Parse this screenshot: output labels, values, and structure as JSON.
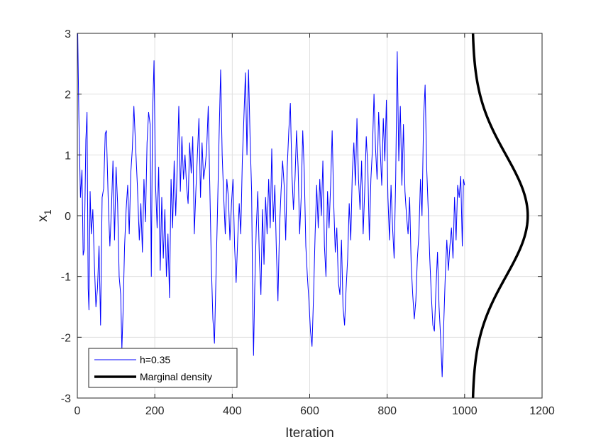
{
  "chart_data": {
    "type": "line",
    "title": "",
    "xlabel": "Iteration",
    "ylabel_main": "x",
    "ylabel_sub": "1",
    "xlim": [
      0,
      1200
    ],
    "ylim": [
      -3,
      3
    ],
    "xticks": [
      0,
      200,
      400,
      600,
      800,
      1000,
      1200
    ],
    "xtick_labels": [
      "0",
      "200",
      "400",
      "600",
      "800",
      "1000",
      "1200"
    ],
    "yticks": [
      -3,
      -2,
      -1,
      0,
      1,
      2,
      3
    ],
    "ytick_labels": [
      "-3",
      "-2",
      "-1",
      "0",
      "1",
      "2",
      "3"
    ],
    "grid": true,
    "legend_position": "bottom-left",
    "series": [
      {
        "name": "h=0.35",
        "color": "#0000ff",
        "kind": "trace",
        "x_start": 1,
        "x_end": 1000,
        "points": [
          [
            1,
            3.0
          ],
          [
            4,
            1.6
          ],
          [
            8,
            0.3
          ],
          [
            12,
            0.75
          ],
          [
            15,
            -0.65
          ],
          [
            18,
            -0.55
          ],
          [
            22,
            1.25
          ],
          [
            25,
            1.7
          ],
          [
            28,
            -1.2
          ],
          [
            30,
            -1.55
          ],
          [
            33,
            0.4
          ],
          [
            36,
            -0.3
          ],
          [
            40,
            0.1
          ],
          [
            44,
            -0.8
          ],
          [
            48,
            -1.5
          ],
          [
            52,
            -1.2
          ],
          [
            56,
            -0.5
          ],
          [
            60,
            -1.8
          ],
          [
            64,
            0.3
          ],
          [
            68,
            0.45
          ],
          [
            72,
            1.35
          ],
          [
            75,
            1.4
          ],
          [
            80,
            0.2
          ],
          [
            84,
            -0.5
          ],
          [
            88,
            0.1
          ],
          [
            92,
            0.9
          ],
          [
            96,
            -0.4
          ],
          [
            100,
            0.8
          ],
          [
            104,
            0.2
          ],
          [
            108,
            -1.0
          ],
          [
            112,
            -1.3
          ],
          [
            115,
            -2.2
          ],
          [
            118,
            -1.6
          ],
          [
            122,
            -0.5
          ],
          [
            126,
            0.1
          ],
          [
            130,
            0.5
          ],
          [
            134,
            -0.3
          ],
          [
            138,
            0.7
          ],
          [
            142,
            1.1
          ],
          [
            146,
            1.8
          ],
          [
            150,
            1.2
          ],
          [
            155,
            0.5
          ],
          [
            160,
            -0.4
          ],
          [
            164,
            0.2
          ],
          [
            168,
            -0.6
          ],
          [
            172,
            0.6
          ],
          [
            176,
            -0.1
          ],
          [
            180,
            1.2
          ],
          [
            184,
            1.7
          ],
          [
            188,
            1.5
          ],
          [
            191,
            -1.0
          ],
          [
            194,
            1.6
          ],
          [
            198,
            2.55
          ],
          [
            202,
            0.5
          ],
          [
            206,
            -0.2
          ],
          [
            210,
            0.8
          ],
          [
            214,
            -0.9
          ],
          [
            218,
            0.3
          ],
          [
            222,
            -0.7
          ],
          [
            226,
            0.1
          ],
          [
            230,
            -1.0
          ],
          [
            234,
            -0.3
          ],
          [
            238,
            -1.35
          ],
          [
            242,
            0.6
          ],
          [
            246,
            -0.2
          ],
          [
            250,
            0.9
          ],
          [
            254,
            0.0
          ],
          [
            258,
            0.8
          ],
          [
            262,
            1.8
          ],
          [
            266,
            0.4
          ],
          [
            270,
            1.3
          ],
          [
            274,
            0.6
          ],
          [
            278,
            1.0
          ],
          [
            282,
            0.5
          ],
          [
            286,
            0.2
          ],
          [
            290,
            1.2
          ],
          [
            294,
            0.7
          ],
          [
            298,
            1.3
          ],
          [
            302,
            -0.3
          ],
          [
            306,
            0.4
          ],
          [
            310,
            1.0
          ],
          [
            314,
            1.6
          ],
          [
            318,
            0.3
          ],
          [
            322,
            1.2
          ],
          [
            326,
            0.6
          ],
          [
            330,
            0.8
          ],
          [
            334,
            1.1
          ],
          [
            338,
            1.8
          ],
          [
            342,
            0.5
          ],
          [
            346,
            -0.8
          ],
          [
            350,
            -1.7
          ],
          [
            354,
            -2.1
          ],
          [
            358,
            -1.0
          ],
          [
            362,
            0.1
          ],
          [
            366,
            1.3
          ],
          [
            370,
            2.4
          ],
          [
            374,
            1.0
          ],
          [
            378,
            0.3
          ],
          [
            382,
            -0.3
          ],
          [
            386,
            0.6
          ],
          [
            390,
            0.3
          ],
          [
            394,
            -0.4
          ],
          [
            398,
            0.2
          ],
          [
            402,
            0.6
          ],
          [
            406,
            -0.5
          ],
          [
            410,
            -1.1
          ],
          [
            414,
            -0.4
          ],
          [
            418,
            0.2
          ],
          [
            422,
            -0.3
          ],
          [
            426,
            0.9
          ],
          [
            430,
            1.6
          ],
          [
            434,
            2.35
          ],
          [
            438,
            1.0
          ],
          [
            442,
            2.4
          ],
          [
            446,
            1.3
          ],
          [
            450,
            0.4
          ],
          [
            453,
            -1.5
          ],
          [
            455,
            -2.3
          ],
          [
            458,
            -1.2
          ],
          [
            462,
            -0.2
          ],
          [
            466,
            0.4
          ],
          [
            470,
            -0.7
          ],
          [
            474,
            -1.3
          ],
          [
            478,
            0.1
          ],
          [
            482,
            -0.8
          ],
          [
            486,
            0.3
          ],
          [
            490,
            -0.3
          ],
          [
            494,
            0.6
          ],
          [
            498,
            -0.2
          ],
          [
            502,
            1.1
          ],
          [
            506,
            -0.1
          ],
          [
            510,
            0.5
          ],
          [
            514,
            -0.6
          ],
          [
            518,
            -1.4
          ],
          [
            522,
            -0.2
          ],
          [
            526,
            0.4
          ],
          [
            530,
            0.9
          ],
          [
            534,
            0.5
          ],
          [
            538,
            -0.4
          ],
          [
            542,
            0.8
          ],
          [
            546,
            1.4
          ],
          [
            550,
            1.85
          ],
          [
            554,
            0.7
          ],
          [
            558,
            0.1
          ],
          [
            562,
            0.6
          ],
          [
            566,
            1.4
          ],
          [
            570,
            0.8
          ],
          [
            574,
            -0.3
          ],
          [
            578,
            0.3
          ],
          [
            582,
            1.4
          ],
          [
            586,
            0.7
          ],
          [
            590,
            -0.5
          ],
          [
            594,
            -1.0
          ],
          [
            598,
            -1.4
          ],
          [
            602,
            -1.9
          ],
          [
            606,
            -2.15
          ],
          [
            610,
            -1.3
          ],
          [
            614,
            -0.3
          ],
          [
            618,
            0.5
          ],
          [
            622,
            -0.2
          ],
          [
            626,
            0.6
          ],
          [
            630,
            0.0
          ],
          [
            634,
            0.9
          ],
          [
            638,
            -0.5
          ],
          [
            642,
            -1.0
          ],
          [
            646,
            0.4
          ],
          [
            650,
            -0.2
          ],
          [
            654,
            0.5
          ],
          [
            658,
            1.4
          ],
          [
            662,
            0.2
          ],
          [
            666,
            -0.6
          ],
          [
            670,
            -0.2
          ],
          [
            674,
            -1.1
          ],
          [
            678,
            -1.3
          ],
          [
            682,
            -0.4
          ],
          [
            686,
            -1.5
          ],
          [
            690,
            -1.8
          ],
          [
            694,
            -1.2
          ],
          [
            698,
            -0.7
          ],
          [
            702,
            0.2
          ],
          [
            706,
            -0.4
          ],
          [
            710,
            0.7
          ],
          [
            714,
            1.2
          ],
          [
            718,
            0.5
          ],
          [
            722,
            1.6
          ],
          [
            726,
            0.6
          ],
          [
            730,
            0.1
          ],
          [
            734,
            0.9
          ],
          [
            738,
            -0.3
          ],
          [
            742,
            0.4
          ],
          [
            746,
            1.3
          ],
          [
            750,
            0.8
          ],
          [
            754,
            -0.4
          ],
          [
            758,
            0.6
          ],
          [
            762,
            1.1
          ],
          [
            766,
            2.0
          ],
          [
            770,
            1.1
          ],
          [
            774,
            0.6
          ],
          [
            778,
            1.7
          ],
          [
            782,
            1.1
          ],
          [
            786,
            0.5
          ],
          [
            790,
            1.6
          ],
          [
            794,
            0.9
          ],
          [
            798,
            1.9
          ],
          [
            802,
            0.3
          ],
          [
            806,
            -0.4
          ],
          [
            810,
            0.5
          ],
          [
            814,
            -0.2
          ],
          [
            818,
            -0.7
          ],
          [
            822,
            0.6
          ],
          [
            826,
            2.7
          ],
          [
            830,
            0.9
          ],
          [
            834,
            1.8
          ],
          [
            838,
            0.5
          ],
          [
            842,
            1.5
          ],
          [
            846,
            0.4
          ],
          [
            850,
            0.0
          ],
          [
            854,
            -0.3
          ],
          [
            858,
            0.3
          ],
          [
            862,
            -0.8
          ],
          [
            866,
            -1.3
          ],
          [
            870,
            -1.7
          ],
          [
            874,
            -1.4
          ],
          [
            878,
            -0.7
          ],
          [
            882,
            -0.3
          ],
          [
            886,
            0.6
          ],
          [
            890,
            0.0
          ],
          [
            894,
            1.6
          ],
          [
            898,
            2.15
          ],
          [
            902,
            0.8
          ],
          [
            906,
            0.1
          ],
          [
            910,
            -0.7
          ],
          [
            914,
            -1.3
          ],
          [
            918,
            -1.8
          ],
          [
            922,
            -1.9
          ],
          [
            926,
            -1.2
          ],
          [
            930,
            -0.6
          ],
          [
            934,
            -1.5
          ],
          [
            938,
            -2.0
          ],
          [
            942,
            -2.65
          ],
          [
            946,
            -1.8
          ],
          [
            950,
            -1.0
          ],
          [
            954,
            -0.4
          ],
          [
            958,
            -0.9
          ],
          [
            962,
            -0.5
          ],
          [
            966,
            -0.2
          ],
          [
            970,
            -0.7
          ],
          [
            974,
            0.3
          ],
          [
            978,
            -0.4
          ],
          [
            982,
            0.5
          ],
          [
            986,
            0.3
          ],
          [
            990,
            0.65
          ],
          [
            994,
            -0.5
          ],
          [
            997,
            0.6
          ],
          [
            1000,
            0.5
          ]
        ]
      },
      {
        "name": "Marginal density",
        "color": "#000000",
        "kind": "density",
        "distribution": "standard normal N(0,1)",
        "x_base": 1020,
        "peak_x": 1163,
        "note_peak": "curve peaks at y=0 near Iteration≈1163"
      }
    ]
  },
  "legend": {
    "entries": [
      {
        "label": "h=0.35",
        "color": "#0000ff"
      },
      {
        "label": "Marginal density",
        "color": "#000000"
      }
    ]
  },
  "colors": {
    "trace": "#0000ff",
    "density": "#000000",
    "grid": "#dfdfdf",
    "axes": "#262626"
  }
}
